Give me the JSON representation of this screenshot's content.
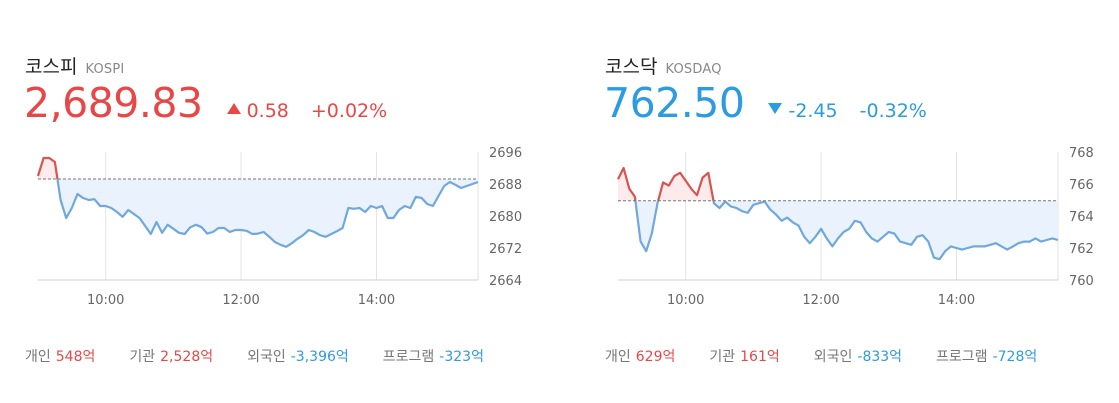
{
  "panels": [
    {
      "id": "kospi",
      "name_ko": "코스피",
      "name_en": "KOSPI",
      "value": "2,689.83",
      "change": "0.58",
      "change_pct": "+0.02%",
      "direction": "up",
      "investors": [
        {
          "label": "개인",
          "value": "548억",
          "sign": "pos"
        },
        {
          "label": "기관",
          "value": "2,528억",
          "sign": "pos"
        },
        {
          "label": "외국인",
          "value": "-3,396억",
          "sign": "neg"
        },
        {
          "label": "프로그램",
          "value": "-323억",
          "sign": "neg"
        }
      ]
    },
    {
      "id": "kosdaq",
      "name_ko": "코스닥",
      "name_en": "KOSDAQ",
      "value": "762.50",
      "change": "-2.45",
      "change_pct": "-0.32%",
      "direction": "down",
      "investors": [
        {
          "label": "개인",
          "value": "629억",
          "sign": "pos"
        },
        {
          "label": "기관",
          "value": "161억",
          "sign": "pos"
        },
        {
          "label": "외국인",
          "value": "-833억",
          "sign": "neg"
        },
        {
          "label": "프로그램",
          "value": "-728억",
          "sign": "neg"
        }
      ]
    }
  ],
  "colors": {
    "up": "#e84747",
    "down": "#2d9be0",
    "line_below": "#6fa8dc",
    "line_above": "#d9534f",
    "fill_below": "#eaf3fd",
    "fill_above": "#fdeaea",
    "grid": "#e3e3e3",
    "baseline": "#777777"
  },
  "chart_data": [
    {
      "type": "line",
      "title": "",
      "xlabel": "",
      "ylabel": "",
      "x_ticks": [
        "10:00",
        "12:00",
        "14:00"
      ],
      "x_range": [
        "09:00",
        "15:30"
      ],
      "y_ticks": [
        2696,
        2688,
        2680,
        2672,
        2664
      ],
      "ylim": [
        2664,
        2696
      ],
      "reference": 2689.25,
      "grid": true,
      "series": [
        {
          "x": [
            "09:00",
            "09:05",
            "09:10",
            "09:15",
            "09:20",
            "09:25",
            "09:30",
            "09:35",
            "09:40",
            "09:45",
            "09:50",
            "09:55",
            "10:00",
            "10:05",
            "10:10",
            "10:15",
            "10:20",
            "10:25",
            "10:30",
            "10:35",
            "10:40",
            "10:45",
            "10:50",
            "10:55",
            "11:00",
            "11:05",
            "11:10",
            "11:15",
            "11:20",
            "11:25",
            "11:30",
            "11:35",
            "11:40",
            "11:45",
            "11:50",
            "11:55",
            "12:00",
            "12:05",
            "12:10",
            "12:15",
            "12:20",
            "12:25",
            "12:30",
            "12:35",
            "12:40",
            "12:45",
            "12:50",
            "12:55",
            "13:00",
            "13:05",
            "13:10",
            "13:15",
            "13:20",
            "13:25",
            "13:30",
            "13:35",
            "13:40",
            "13:45",
            "13:50",
            "13:55",
            "14:00",
            "14:05",
            "14:10",
            "14:15",
            "14:20",
            "14:25",
            "14:30",
            "14:35",
            "14:40",
            "14:45",
            "14:50",
            "14:55",
            "15:00",
            "15:05",
            "15:10",
            "15:15",
            "15:20",
            "15:25",
            "15:30"
          ],
          "values": [
            2690.0,
            2694.5,
            2694.5,
            2693.5,
            2684.0,
            2679.5,
            2682.0,
            2685.5,
            2684.5,
            2684.0,
            2684.2,
            2682.5,
            2682.5,
            2682.0,
            2681.0,
            2679.8,
            2681.5,
            2680.5,
            2679.5,
            2677.5,
            2675.5,
            2678.5,
            2675.8,
            2677.8,
            2676.8,
            2675.8,
            2675.5,
            2677.2,
            2677.8,
            2677.2,
            2675.6,
            2676.0,
            2677.0,
            2677.0,
            2676.0,
            2676.5,
            2676.5,
            2676.3,
            2675.5,
            2675.6,
            2676.0,
            2674.8,
            2673.5,
            2672.8,
            2672.3,
            2673.2,
            2674.3,
            2675.2,
            2676.5,
            2676.0,
            2675.2,
            2674.8,
            2675.5,
            2676.2,
            2677.0,
            2682.0,
            2681.8,
            2682.0,
            2681.0,
            2682.5,
            2682.0,
            2682.5,
            2679.5,
            2679.5,
            2681.5,
            2682.5,
            2682.0,
            2684.8,
            2684.5,
            2683.0,
            2682.5,
            2685.0,
            2687.5,
            2688.5,
            2687.8,
            2687.0,
            2687.5,
            2688.0,
            2688.5
          ]
        }
      ]
    },
    {
      "type": "line",
      "title": "",
      "xlabel": "",
      "ylabel": "",
      "x_ticks": [
        "10:00",
        "12:00",
        "14:00"
      ],
      "x_range": [
        "09:00",
        "15:30"
      ],
      "y_ticks": [
        768,
        766,
        764,
        762,
        760
      ],
      "ylim": [
        760,
        768
      ],
      "reference": 764.95,
      "grid": true,
      "series": [
        {
          "x": [
            "09:00",
            "09:05",
            "09:10",
            "09:15",
            "09:20",
            "09:25",
            "09:30",
            "09:35",
            "09:40",
            "09:45",
            "09:50",
            "09:55",
            "10:00",
            "10:05",
            "10:10",
            "10:15",
            "10:20",
            "10:25",
            "10:30",
            "10:35",
            "10:40",
            "10:45",
            "10:50",
            "10:55",
            "11:00",
            "11:05",
            "11:10",
            "11:15",
            "11:20",
            "11:25",
            "11:30",
            "11:35",
            "11:40",
            "11:45",
            "11:50",
            "11:55",
            "12:00",
            "12:05",
            "12:10",
            "12:15",
            "12:20",
            "12:25",
            "12:30",
            "12:35",
            "12:40",
            "12:45",
            "12:50",
            "12:55",
            "13:00",
            "13:05",
            "13:10",
            "13:15",
            "13:20",
            "13:25",
            "13:30",
            "13:35",
            "13:40",
            "13:45",
            "13:50",
            "13:55",
            "14:00",
            "14:05",
            "14:10",
            "14:15",
            "14:20",
            "14:25",
            "14:30",
            "14:35",
            "14:40",
            "14:45",
            "14:50",
            "14:55",
            "15:00",
            "15:05",
            "15:10",
            "15:15",
            "15:20",
            "15:25",
            "15:30"
          ],
          "values": [
            766.3,
            767.0,
            765.7,
            765.2,
            762.4,
            761.8,
            762.9,
            764.8,
            766.1,
            765.9,
            766.5,
            766.7,
            766.2,
            765.7,
            765.3,
            766.4,
            766.7,
            764.8,
            764.5,
            764.9,
            764.6,
            764.5,
            764.3,
            764.2,
            764.7,
            764.8,
            764.9,
            764.4,
            764.1,
            763.7,
            763.9,
            763.6,
            763.4,
            762.7,
            762.3,
            762.7,
            763.2,
            762.6,
            762.1,
            762.6,
            763.0,
            763.2,
            763.7,
            763.6,
            763.0,
            762.6,
            762.4,
            762.7,
            763.0,
            762.9,
            762.4,
            762.3,
            762.2,
            762.7,
            762.8,
            762.4,
            761.4,
            761.3,
            761.8,
            762.1,
            762.0,
            761.9,
            762.0,
            762.1,
            762.1,
            762.1,
            762.2,
            762.3,
            762.1,
            761.9,
            762.1,
            762.3,
            762.4,
            762.4,
            762.6,
            762.4,
            762.5,
            762.6,
            762.5
          ]
        }
      ]
    }
  ]
}
